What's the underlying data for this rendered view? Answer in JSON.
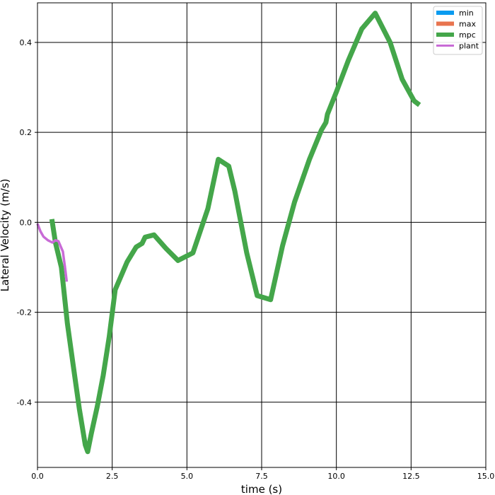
{
  "chart_data": {
    "type": "line",
    "xlabel": "time (s)",
    "ylabel": "Lateral Velocity (m/s)",
    "xlim": [
      0,
      15
    ],
    "ylim": [
      -0.545,
      0.488
    ],
    "x_ticks": [
      0.0,
      2.5,
      5.0,
      7.5,
      10.0,
      12.5,
      15.0
    ],
    "x_tick_labels": [
      "0.0",
      "2.5",
      "5.0",
      "7.5",
      "10.0",
      "12.5",
      "15.0"
    ],
    "y_ticks": [
      -0.4,
      -0.2,
      0.0,
      0.2,
      0.4
    ],
    "y_tick_labels": [
      "-0.4",
      "-0.2",
      "0.0",
      "0.2",
      "0.4"
    ],
    "grid": true,
    "legend_position": "top-right",
    "series": [
      {
        "name": "min",
        "color": "#0a9bf0",
        "values": []
      },
      {
        "name": "max",
        "color": "#e8744f",
        "values": []
      },
      {
        "name": "mpc",
        "color": "#44a64a",
        "x": [
          0.48,
          0.6,
          0.8,
          1.0,
          1.2,
          1.4,
          1.6,
          1.68,
          1.8,
          2.0,
          2.2,
          2.4,
          2.6,
          3.0,
          3.3,
          3.5,
          3.6,
          3.9,
          4.3,
          4.7,
          5.2,
          5.7,
          6.05,
          6.4,
          6.6,
          7.0,
          7.35,
          7.8,
          8.2,
          8.6,
          9.1,
          9.5,
          9.65,
          9.7,
          10.0,
          10.4,
          10.85,
          11.3,
          11.8,
          12.2,
          12.6,
          12.78
        ],
        "values": [
          0.007,
          -0.045,
          -0.1,
          -0.225,
          -0.32,
          -0.415,
          -0.495,
          -0.51,
          -0.47,
          -0.41,
          -0.34,
          -0.255,
          -0.15,
          -0.088,
          -0.055,
          -0.047,
          -0.033,
          -0.028,
          -0.058,
          -0.085,
          -0.068,
          0.03,
          0.14,
          0.125,
          0.07,
          -0.068,
          -0.163,
          -0.172,
          -0.052,
          0.045,
          0.14,
          0.205,
          0.222,
          0.24,
          0.29,
          0.36,
          0.43,
          0.465,
          0.4,
          0.318,
          0.27,
          0.261
        ]
      },
      {
        "name": "plant",
        "color": "#c86bd6",
        "x": [
          0.0,
          0.1,
          0.2,
          0.35,
          0.5,
          0.6,
          0.7,
          0.85,
          0.92,
          0.98
        ],
        "values": [
          -0.003,
          -0.02,
          -0.032,
          -0.04,
          -0.045,
          -0.04,
          -0.042,
          -0.065,
          -0.1,
          -0.132
        ]
      }
    ]
  }
}
